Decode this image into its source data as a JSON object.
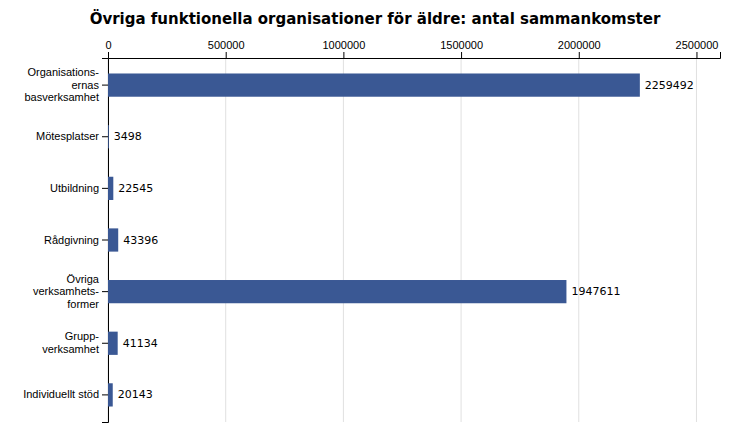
{
  "chart_data": {
    "type": "bar",
    "orientation": "horizontal",
    "title": "Övriga funktionella organisationer för äldre: antal sammankomster",
    "categories": [
      "Individuellt stöd",
      "Grupp-\nverksamhet",
      "Övriga\nverksamhets-\nformer",
      "Rådgivning",
      "Utbildning",
      "Mötesplatser",
      "Organisations-\nernas\nbasverksamhet"
    ],
    "values": [
      20143,
      41134,
      1947611,
      43396,
      22545,
      3498,
      2259492
    ],
    "color": "#3A5894",
    "xlim": [
      0,
      2600000
    ],
    "xticks": [
      0,
      500000,
      1000000,
      1500000,
      2000000,
      2500000
    ],
    "grid": true,
    "data_labels": true
  }
}
